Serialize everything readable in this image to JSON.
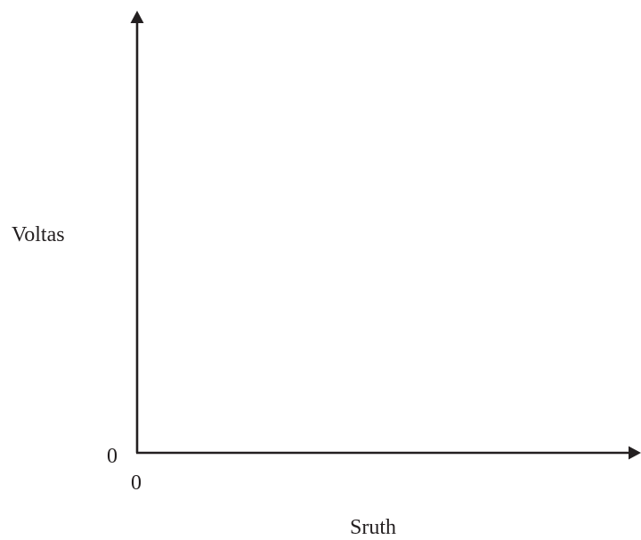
{
  "chart_data": {
    "type": "line",
    "xlabel": "Sruth",
    "ylabel": "Voltas",
    "x_origin_label": "0",
    "y_origin_label": "0",
    "series": [],
    "grid": false,
    "axis_color": "#231f20"
  }
}
